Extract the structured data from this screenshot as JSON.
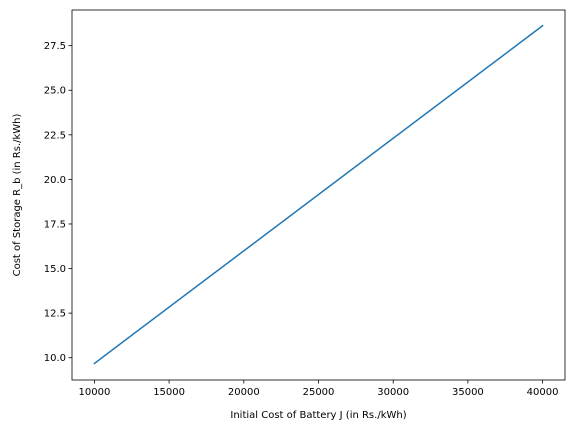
{
  "chart_data": {
    "type": "line",
    "title": "",
    "xlabel": "Initial Cost of Battery J (in Rs./kWh)",
    "ylabel": "Cost of Storage R_b (in Rs./kWh)",
    "xlim": [
      8500,
      41500
    ],
    "ylim": [
      8.75,
      29.5
    ],
    "xticks": [
      10000,
      15000,
      20000,
      25000,
      30000,
      35000,
      40000
    ],
    "xtick_labels": [
      "10000",
      "15000",
      "20000",
      "25000",
      "30000",
      "35000",
      "40000"
    ],
    "yticks": [
      10.0,
      12.5,
      15.0,
      17.5,
      20.0,
      22.5,
      25.0,
      27.5
    ],
    "ytick_labels": [
      "10.0",
      "12.5",
      "15.0",
      "17.5",
      "20.0",
      "22.5",
      "25.0",
      "27.5"
    ],
    "grid": false,
    "line_color": "#1f77b4",
    "series": [
      {
        "x": [
          10000,
          40000
        ],
        "y": [
          9.68,
          28.62
        ]
      }
    ]
  }
}
